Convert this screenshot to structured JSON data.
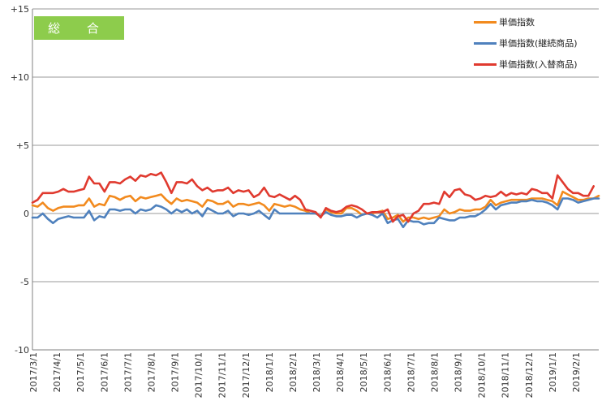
{
  "chart_data": {
    "type": "line",
    "title": "総 合",
    "xlabel": "",
    "ylabel": "",
    "ylim": [
      -10,
      15
    ],
    "y_ticks": [
      {
        "value": 15,
        "label": "+15"
      },
      {
        "value": 10,
        "label": "+10"
      },
      {
        "value": 5,
        "label": "+5"
      },
      {
        "value": 0,
        "label": "0"
      },
      {
        "value": -5,
        "label": "-5"
      },
      {
        "value": -10,
        "label": "-10"
      }
    ],
    "x_tick_labels": [
      "2017/3/1",
      "2017/4/1",
      "2017/5/1",
      "2017/6/1",
      "2017/7/1",
      "2017/8/1",
      "2017/9/1",
      "2017/10/1",
      "2017/11/1",
      "2017/12/1",
      "2018/1/1",
      "2018/2/1",
      "2018/3/1",
      "2018/4/1",
      "2018/5/1",
      "2018/6/1",
      "2018/7/1",
      "2018/8/1",
      "2018/9/1",
      "2018/10/1",
      "2018/11/1",
      "2018/12/1",
      "2019/1/1",
      "2019/2/1"
    ],
    "grid": true,
    "legend_position": "top-right",
    "series": [
      {
        "name": "単価指数",
        "color": "#f28a1e",
        "values": [
          0.6,
          0.5,
          0.8,
          0.4,
          0.2,
          0.4,
          0.5,
          0.5,
          0.5,
          0.6,
          0.6,
          1.1,
          0.5,
          0.7,
          0.6,
          1.3,
          1.2,
          1.0,
          1.2,
          1.3,
          0.9,
          1.2,
          1.1,
          1.2,
          1.3,
          1.4,
          1.0,
          0.7,
          1.1,
          0.9,
          1.0,
          0.9,
          0.8,
          0.5,
          1.0,
          0.9,
          0.7,
          0.7,
          0.9,
          0.5,
          0.7,
          0.7,
          0.6,
          0.7,
          0.8,
          0.6,
          0.2,
          0.7,
          0.6,
          0.5,
          0.6,
          0.5,
          0.3,
          0.2,
          0.0,
          0.0,
          -0.2,
          0.3,
          0.1,
          0.0,
          0.0,
          0.4,
          0.4,
          0.2,
          -0.1,
          0.0,
          0.0,
          0.1,
          0.2,
          -0.4,
          -0.3,
          -0.1,
          -0.6,
          -0.3,
          -0.3,
          -0.4,
          -0.3,
          -0.4,
          -0.3,
          -0.2,
          0.3,
          0.0,
          0.1,
          0.3,
          0.2,
          0.2,
          0.3,
          0.3,
          0.5,
          1.0,
          0.6,
          0.8,
          0.9,
          1.0,
          1.0,
          1.0,
          1.0,
          1.1,
          1.1,
          1.1,
          1.0,
          0.9,
          0.6,
          1.6,
          1.4,
          1.2,
          1.0,
          1.0,
          1.1,
          1.1,
          1.3
        ]
      },
      {
        "name": "単価指数(継続商品)",
        "color": "#4f81bd",
        "values": [
          -0.3,
          -0.3,
          0.0,
          -0.4,
          -0.7,
          -0.4,
          -0.3,
          -0.2,
          -0.3,
          -0.3,
          -0.3,
          0.2,
          -0.5,
          -0.2,
          -0.3,
          0.3,
          0.3,
          0.2,
          0.3,
          0.3,
          0.0,
          0.3,
          0.2,
          0.3,
          0.6,
          0.5,
          0.3,
          0.0,
          0.3,
          0.1,
          0.3,
          0.0,
          0.2,
          -0.2,
          0.4,
          0.2,
          0.0,
          0.0,
          0.2,
          -0.2,
          0.0,
          0.0,
          -0.1,
          0.0,
          0.2,
          -0.1,
          -0.4,
          0.3,
          0.0,
          0.0,
          0.0,
          0.0,
          0.0,
          0.0,
          0.0,
          0.0,
          -0.2,
          0.1,
          -0.1,
          -0.2,
          -0.2,
          -0.1,
          -0.1,
          -0.3,
          -0.1,
          0.0,
          -0.1,
          -0.3,
          0.0,
          -0.7,
          -0.5,
          -0.4,
          -1.0,
          -0.5,
          -0.6,
          -0.6,
          -0.8,
          -0.7,
          -0.7,
          -0.3,
          -0.4,
          -0.5,
          -0.5,
          -0.3,
          -0.3,
          -0.2,
          -0.2,
          0.0,
          0.3,
          0.7,
          0.3,
          0.6,
          0.7,
          0.8,
          0.8,
          0.9,
          0.9,
          1.0,
          0.9,
          0.9,
          0.8,
          0.6,
          0.3,
          1.1,
          1.1,
          1.0,
          0.8,
          0.9,
          1.0,
          1.1,
          1.1
        ]
      },
      {
        "name": "単価指数(入替商品)",
        "color": "#e03a2f",
        "values": [
          0.8,
          1.0,
          1.5,
          1.5,
          1.5,
          1.6,
          1.8,
          1.6,
          1.6,
          1.7,
          1.8,
          2.7,
          2.2,
          2.2,
          1.6,
          2.3,
          2.3,
          2.2,
          2.5,
          2.7,
          2.4,
          2.8,
          2.7,
          2.9,
          2.8,
          3.0,
          2.3,
          1.5,
          2.3,
          2.3,
          2.2,
          2.5,
          2.0,
          1.7,
          1.9,
          1.6,
          1.7,
          1.7,
          1.9,
          1.5,
          1.7,
          1.6,
          1.7,
          1.2,
          1.4,
          1.9,
          1.3,
          1.2,
          1.4,
          1.2,
          1.0,
          1.3,
          1.0,
          0.3,
          0.2,
          0.1,
          -0.3,
          0.4,
          0.2,
          0.1,
          0.2,
          0.5,
          0.6,
          0.5,
          0.3,
          0.0,
          0.1,
          0.1,
          0.1,
          0.3,
          -0.6,
          -0.2,
          -0.1,
          -0.6,
          0.0,
          0.2,
          0.7,
          0.7,
          0.8,
          0.7,
          1.6,
          1.2,
          1.7,
          1.8,
          1.4,
          1.3,
          1.0,
          1.1,
          1.3,
          1.2,
          1.3,
          1.6,
          1.3,
          1.5,
          1.4,
          1.5,
          1.4,
          1.8,
          1.7,
          1.5,
          1.5,
          1.1,
          2.8,
          2.3,
          1.8,
          1.5,
          1.5,
          1.3,
          1.3,
          2.0
        ]
      }
    ]
  }
}
